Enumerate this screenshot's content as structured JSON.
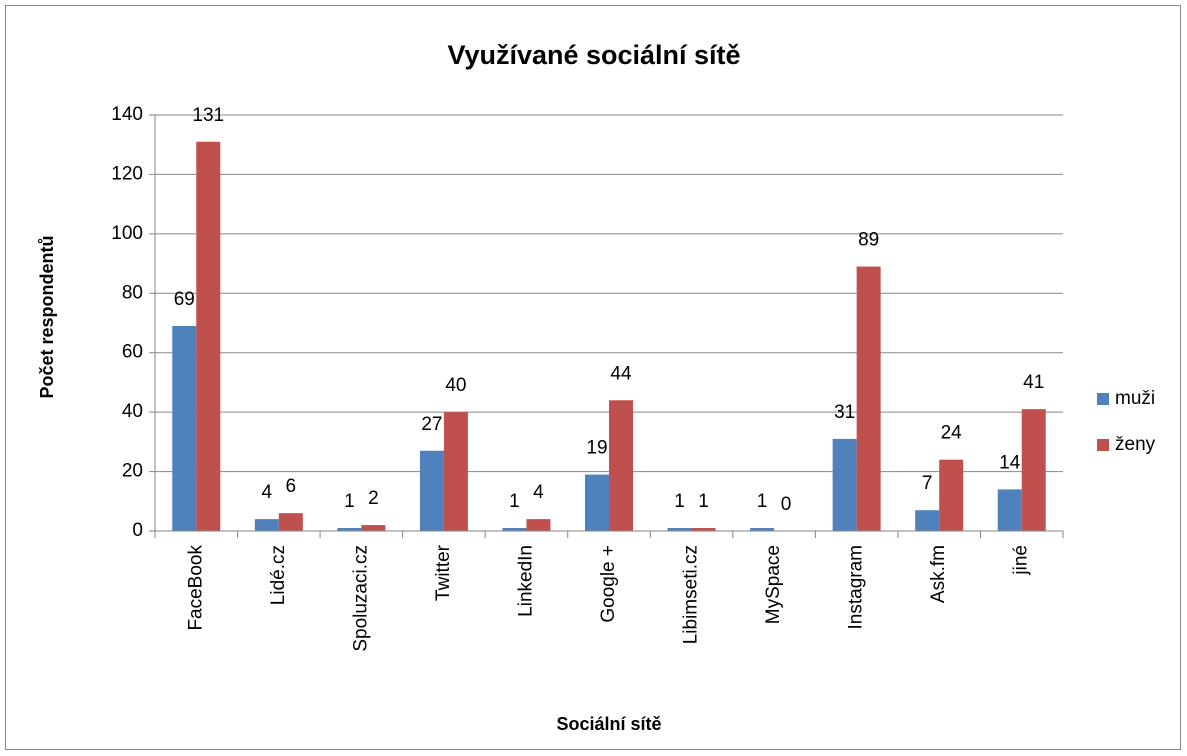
{
  "chart_data": {
    "type": "bar",
    "title": "Využívané sociální sítě",
    "xlabel": "Sociální sítě",
    "ylabel": "Počet respondentů",
    "categories": [
      "FaceBook",
      "Lidé.cz",
      "Spoluzaci.cz",
      "Twitter",
      "LinkedIn",
      "Google +",
      "Libimseti.cz",
      "MySpace",
      "Instagram",
      "Ask.fm",
      "jiné"
    ],
    "series": [
      {
        "name": "muži",
        "color": "#4f81bd",
        "values": [
          69,
          4,
          1,
          27,
          1,
          19,
          1,
          1,
          31,
          7,
          14
        ]
      },
      {
        "name": "ženy",
        "color": "#c0504d",
        "values": [
          131,
          6,
          2,
          40,
          4,
          44,
          1,
          0,
          89,
          24,
          41
        ]
      }
    ],
    "ylim": [
      0,
      140
    ],
    "yticks": [
      0,
      20,
      40,
      60,
      80,
      100,
      120,
      140
    ],
    "grid": true,
    "legend": "right"
  }
}
